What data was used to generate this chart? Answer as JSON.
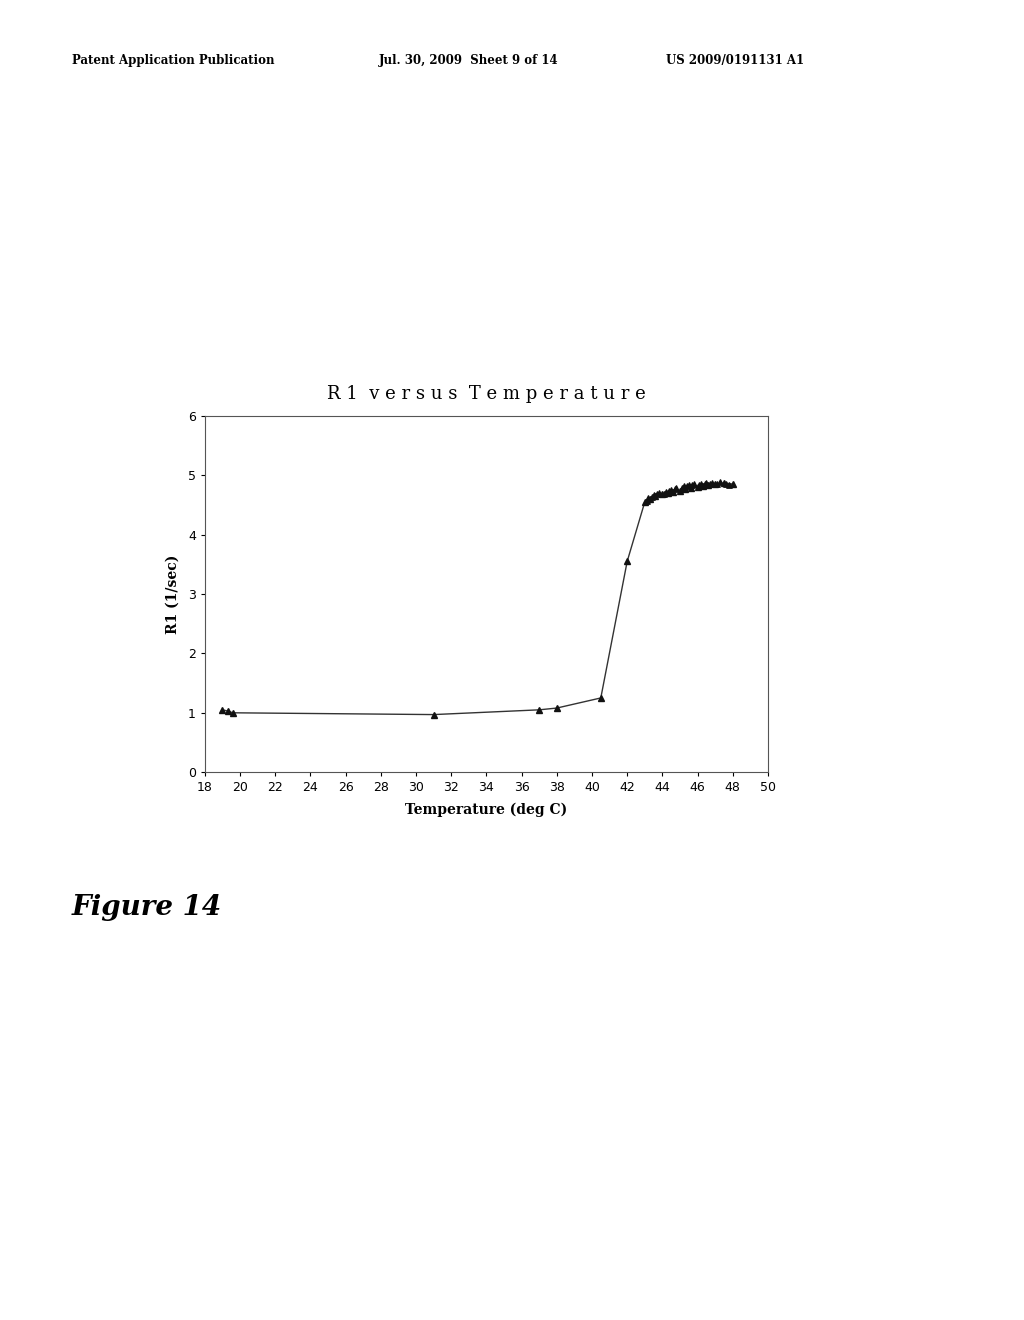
{
  "title": "R 1  v e r s u s  T e m p e r a t u r e",
  "xlabel": "Temperature (deg C)",
  "ylabel": "R1 (1/sec)",
  "xlim": [
    18,
    50
  ],
  "ylim": [
    0,
    6
  ],
  "xticks": [
    18,
    20,
    22,
    24,
    26,
    28,
    30,
    32,
    34,
    36,
    38,
    40,
    42,
    44,
    46,
    48,
    50
  ],
  "yticks": [
    0,
    1,
    2,
    3,
    4,
    5,
    6
  ],
  "line_data_x": [
    19,
    19.3,
    19.6,
    31,
    37,
    38,
    40.5,
    42,
    43,
    43.3,
    43.6,
    44.0,
    44.3,
    44.6,
    45.0,
    45.3,
    45.6,
    46.0,
    46.3,
    46.6,
    47.0,
    47.5,
    48.0
  ],
  "line_data_y": [
    1.05,
    1.03,
    1.0,
    0.97,
    1.05,
    1.08,
    1.25,
    3.55,
    4.55,
    4.6,
    4.65,
    4.68,
    4.7,
    4.72,
    4.74,
    4.76,
    4.78,
    4.8,
    4.82,
    4.84,
    4.85,
    4.87,
    4.85
  ],
  "scatter_extra_x": [
    43.1,
    43.2,
    43.4,
    43.5,
    43.7,
    43.8,
    44.1,
    44.2,
    44.4,
    44.5,
    44.7,
    44.8,
    45.1,
    45.2,
    45.4,
    45.5,
    45.7,
    45.8,
    46.1,
    46.2,
    46.4,
    46.5,
    46.7,
    46.8,
    47.1,
    47.3,
    47.6,
    47.8
  ],
  "scatter_extra_y": [
    4.57,
    4.62,
    4.64,
    4.66,
    4.68,
    4.7,
    4.69,
    4.71,
    4.73,
    4.75,
    4.76,
    4.78,
    4.79,
    4.81,
    4.82,
    4.83,
    4.84,
    4.85,
    4.83,
    4.85,
    4.86,
    4.87,
    4.85,
    4.87,
    4.86,
    4.88,
    4.86,
    4.84
  ],
  "line_color": "#333333",
  "marker_color": "#111111",
  "plot_bg_color": "#ffffff",
  "figure_bg_color": "#ffffff",
  "title_fontsize": 13,
  "label_fontsize": 10,
  "tick_fontsize": 9,
  "header1": "Patent Application Publication",
  "header2": "Jul. 30, 2009  Sheet 9 of 14",
  "header3": "US 2009/0191131 A1",
  "figure_label": "Figure 14"
}
